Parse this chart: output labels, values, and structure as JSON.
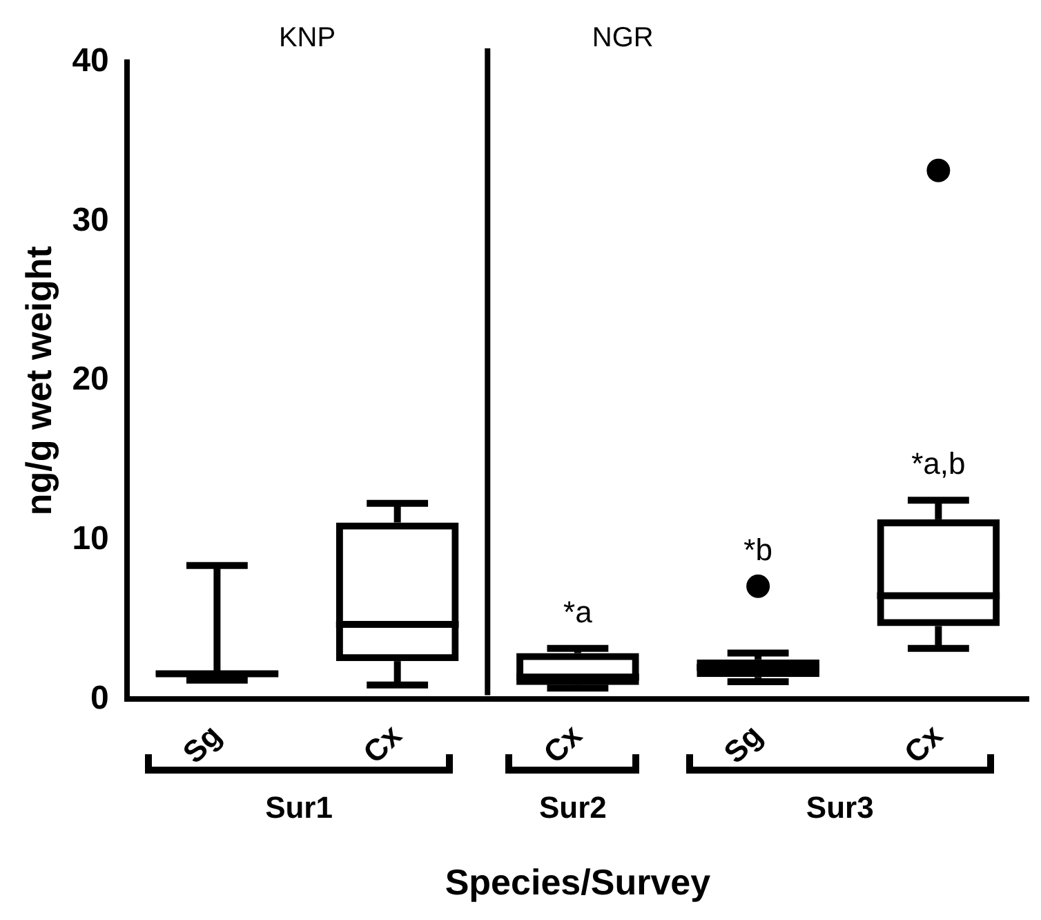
{
  "chart_data": {
    "type": "box",
    "ylabel": "ng/g wet weight",
    "xlabel": "Species/Survey",
    "categories": [
      "Sg",
      "Cx",
      "Cx",
      "Sg",
      "Cx"
    ],
    "boxes": [
      {
        "low": 1.2,
        "q1": 1.5,
        "median": 1.6,
        "q3": 1.8,
        "high": 8.4
      },
      {
        "low": 0.9,
        "q1": 2.4,
        "median": 4.7,
        "q3": 11.1,
        "high": 12.3
      },
      {
        "low": 0.7,
        "q1": 0.9,
        "median": 1.4,
        "q3": 2.9,
        "high": 3.2
      },
      {
        "low": 1.1,
        "q1": 1.4,
        "median": 2.0,
        "q3": 2.5,
        "high": 2.9,
        "outliers": [
          7.1
        ]
      },
      {
        "low": 3.2,
        "q1": 4.6,
        "median": 6.5,
        "q3": 11.3,
        "high": 12.5,
        "outliers": [
          33.2
        ]
      }
    ],
    "color": "#000000",
    "marker": "circle",
    "ylim": [
      0,
      40
    ],
    "yticks": [
      0,
      10,
      20,
      30,
      40
    ],
    "grid": false,
    "legend": false,
    "annotations": [
      "KNP",
      "NGR",
      "Sur1",
      "Sur2",
      "Sur3",
      "*a",
      "*b",
      "*a,b"
    ]
  }
}
